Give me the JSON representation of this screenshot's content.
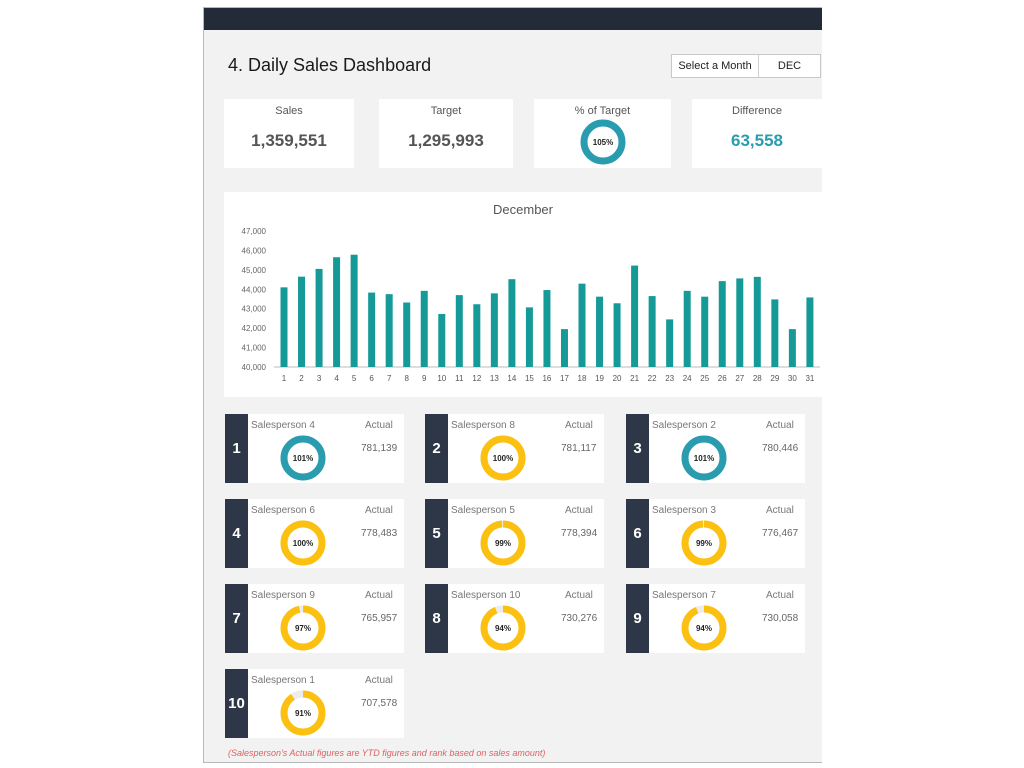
{
  "header": {
    "title": "4. Daily Sales Dashboard",
    "month_selector_label": "Select a Month",
    "month_value": "DEC"
  },
  "kpis": {
    "sales": {
      "label": "Sales",
      "value": "1,359,551"
    },
    "target": {
      "label": "Target",
      "value": "1,295,993"
    },
    "pct": {
      "label": "% of Target",
      "value": "105%",
      "fraction": 1.05
    },
    "difference": {
      "label": "Difference",
      "value": "63,558"
    }
  },
  "colors": {
    "teal_bar": "#159a98",
    "donut_blue": "#2a9cb0",
    "donut_yellow": "#fcc010",
    "rank_bg": "#2e3747",
    "topbar": "#232a38",
    "difference": "#2a9cb0",
    "note": "#e06060"
  },
  "chart_data": {
    "type": "bar",
    "title": "December",
    "categories": [
      "1",
      "2",
      "3",
      "4",
      "5",
      "6",
      "7",
      "8",
      "9",
      "10",
      "11",
      "12",
      "13",
      "14",
      "15",
      "16",
      "17",
      "18",
      "19",
      "20",
      "21",
      "22",
      "23",
      "24",
      "25",
      "26",
      "27",
      "28",
      "29",
      "30",
      "31"
    ],
    "values": [
      44100,
      44650,
      45050,
      45650,
      45780,
      43830,
      43750,
      43320,
      43920,
      42730,
      43700,
      43230,
      43790,
      44520,
      43070,
      43960,
      41950,
      44290,
      43620,
      43280,
      45220,
      43650,
      42450,
      43920,
      43620,
      44420,
      44560,
      44640,
      43480,
      41950,
      43580
    ],
    "ylim": [
      40000,
      47000
    ],
    "yticks": [
      "40,000",
      "41,000",
      "42,000",
      "43,000",
      "44,000",
      "45,000",
      "46,000",
      "47,000"
    ],
    "grid": false
  },
  "salespeople": [
    {
      "rank": "1",
      "name": "Salesperson 4",
      "actual_label": "Actual",
      "actual": "781,139",
      "pct": "101%",
      "fraction": 1.01
    },
    {
      "rank": "2",
      "name": "Salesperson 8",
      "actual_label": "Actual",
      "actual": "781,117",
      "pct": "100%",
      "fraction": 0.998
    },
    {
      "rank": "3",
      "name": "Salesperson 2",
      "actual_label": "Actual",
      "actual": "780,446",
      "pct": "101%",
      "fraction": 1.01
    },
    {
      "rank": "4",
      "name": "Salesperson 6",
      "actual_label": "Actual",
      "actual": "778,483",
      "pct": "100%",
      "fraction": 0.998
    },
    {
      "rank": "5",
      "name": "Salesperson 5",
      "actual_label": "Actual",
      "actual": "778,394",
      "pct": "99%",
      "fraction": 0.99
    },
    {
      "rank": "6",
      "name": "Salesperson 3",
      "actual_label": "Actual",
      "actual": "776,467",
      "pct": "99%",
      "fraction": 0.99
    },
    {
      "rank": "7",
      "name": "Salesperson 9",
      "actual_label": "Actual",
      "actual": "765,957",
      "pct": "97%",
      "fraction": 0.97
    },
    {
      "rank": "8",
      "name": "Salesperson 10",
      "actual_label": "Actual",
      "actual": "730,276",
      "pct": "94%",
      "fraction": 0.94
    },
    {
      "rank": "9",
      "name": "Salesperson 7",
      "actual_label": "Actual",
      "actual": "730,058",
      "pct": "94%",
      "fraction": 0.94
    },
    {
      "rank": "10",
      "name": "Salesperson 1",
      "actual_label": "Actual",
      "actual": "707,578",
      "pct": "91%",
      "fraction": 0.91
    }
  ],
  "footnote": "(Salesperson's Actual figures are YTD figures and rank based on sales amount)"
}
